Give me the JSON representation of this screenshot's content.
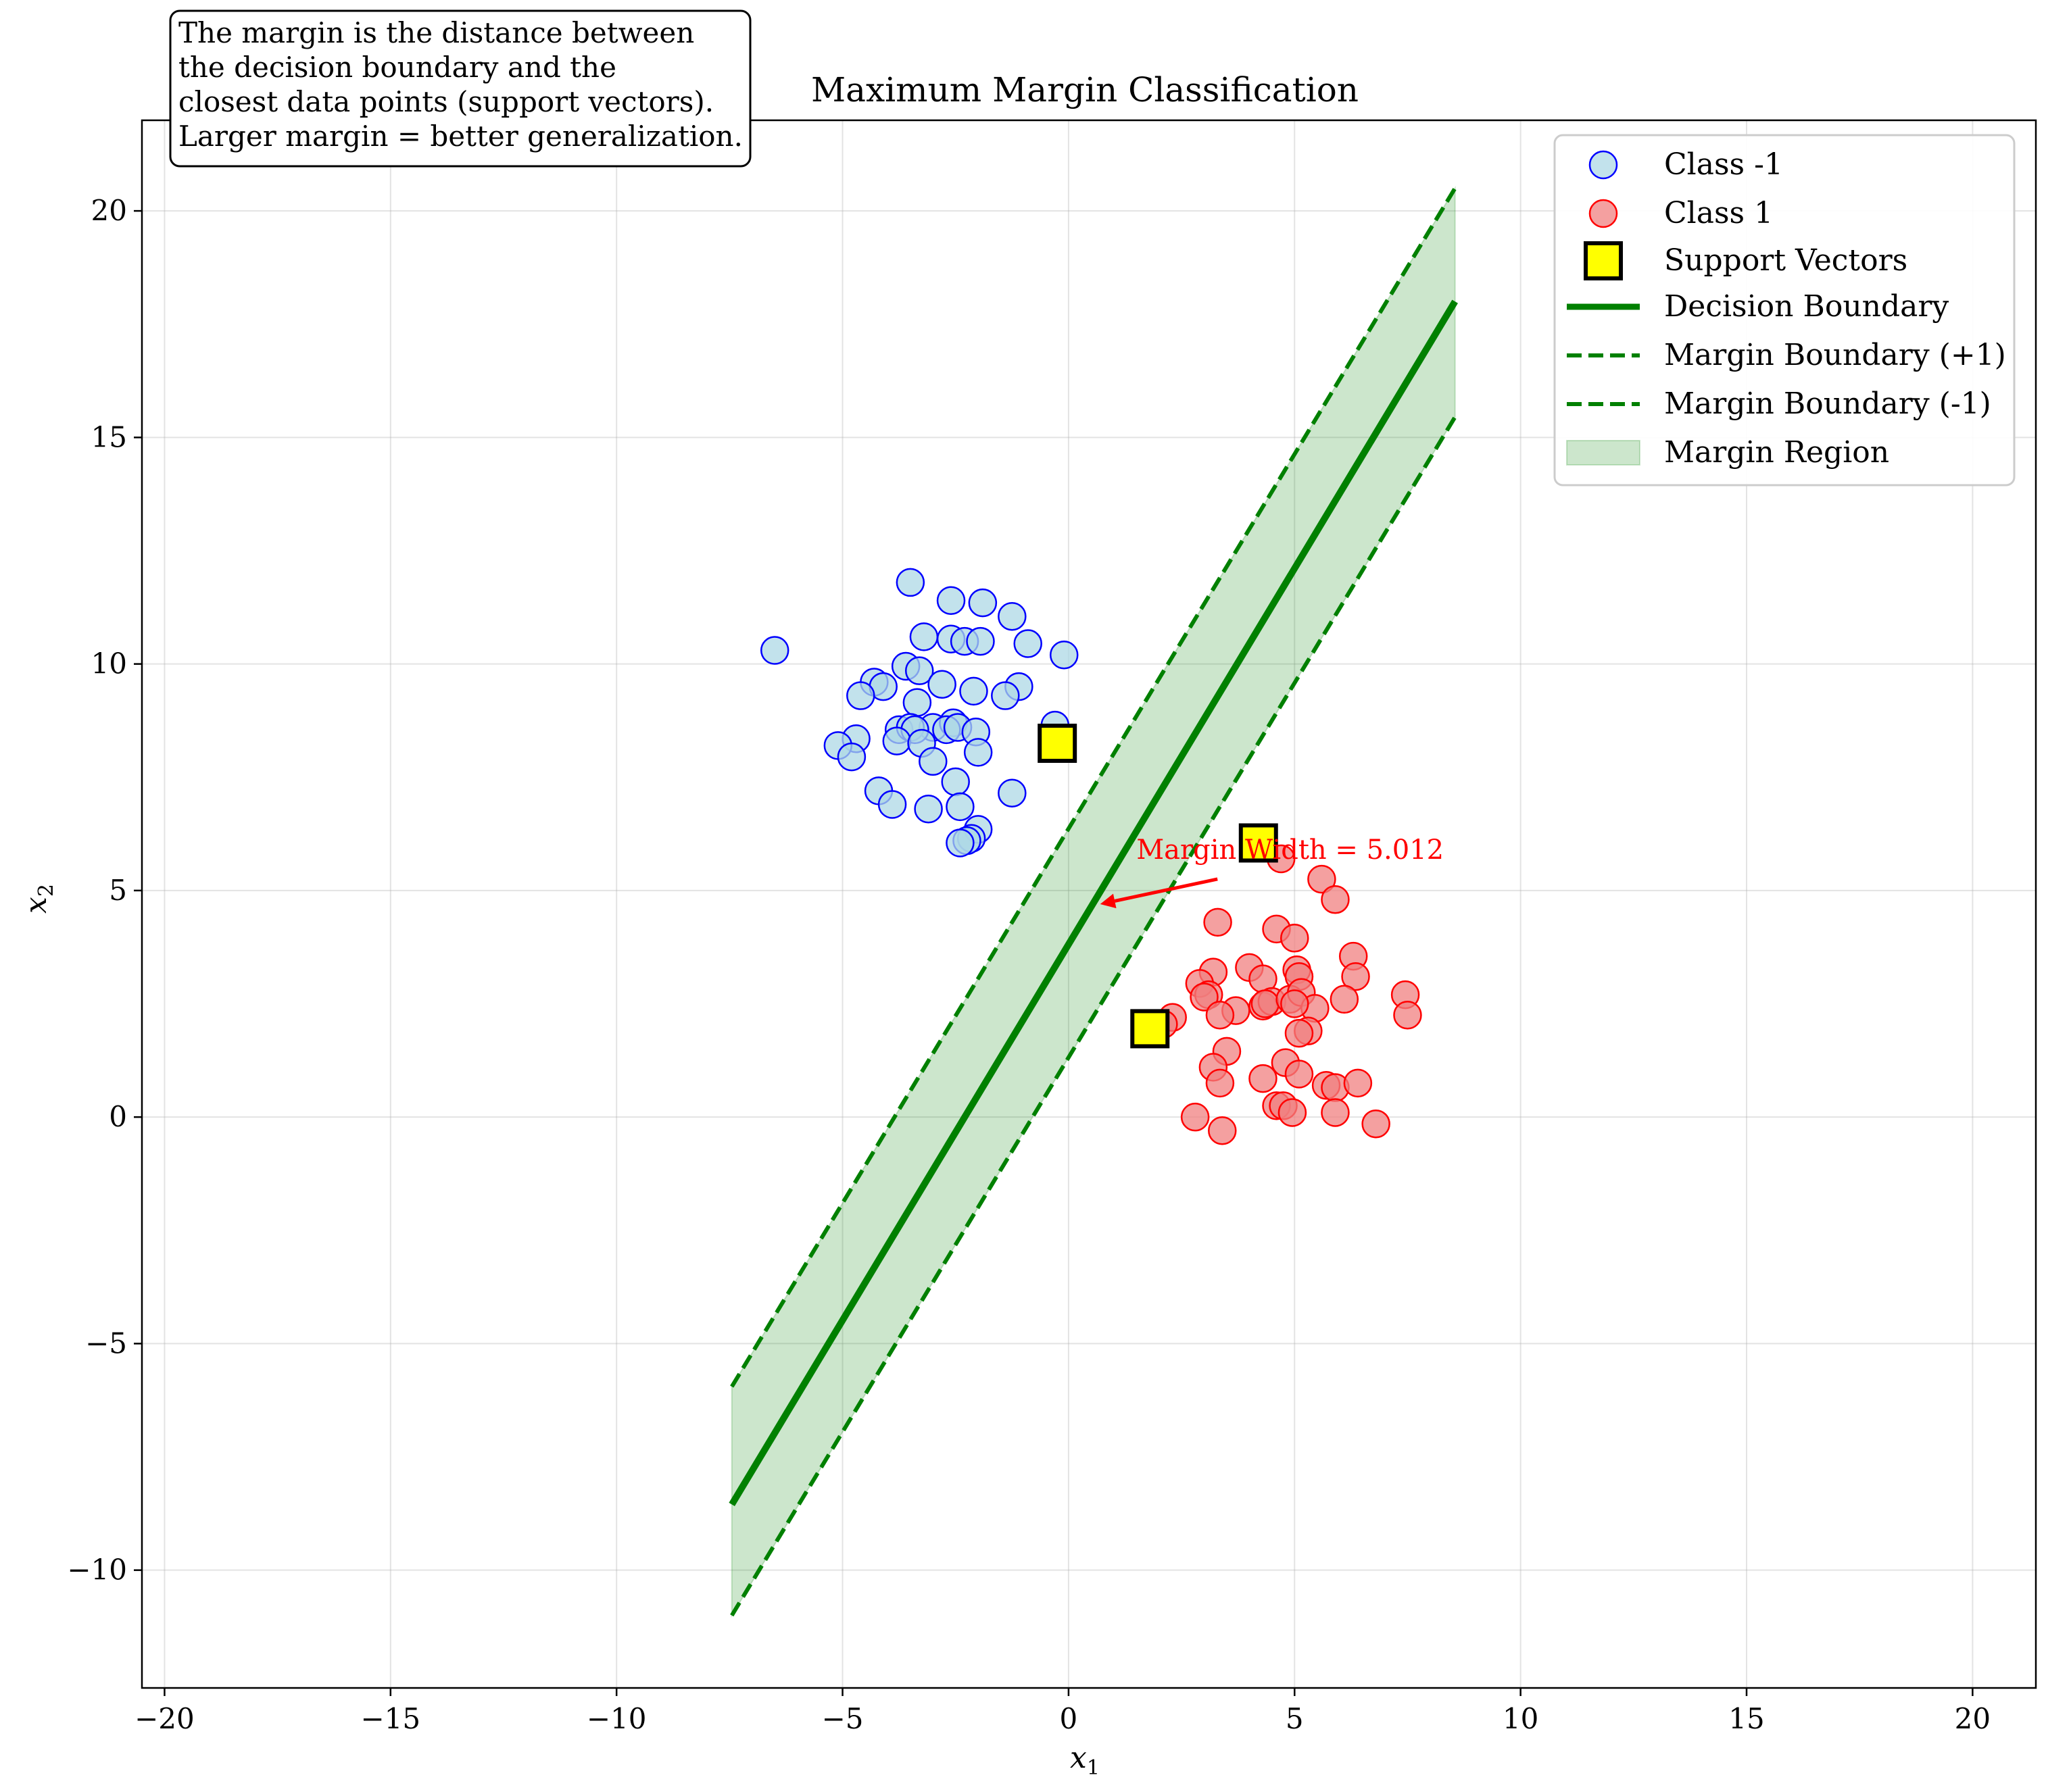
{
  "chart_data": {
    "type": "scatter",
    "title": "Maximum Margin Classification",
    "xlabel": "x",
    "xlabel_sub": "1",
    "ylabel": "x",
    "ylabel_sub": "2",
    "xlim": [
      -20.5,
      21.4
    ],
    "ylim": [
      -12.6,
      22.0
    ],
    "xticks": [
      -20,
      -15,
      -10,
      -5,
      0,
      5,
      10,
      15,
      20
    ],
    "yticks": [
      -10,
      -5,
      0,
      5,
      10,
      15,
      20
    ],
    "xtick_labels": [
      "−20",
      "−15",
      "−10",
      "−5",
      "0",
      "5",
      "10",
      "15",
      "20"
    ],
    "ytick_labels": [
      "−10",
      "−5",
      "0",
      "5",
      "10",
      "15",
      "20"
    ],
    "grid": true,
    "legend_position": "top-right",
    "info_box": [
      "The margin is the distance between",
      "the decision boundary and the",
      "closest data points (support vectors).",
      "Larger margin = better generalization."
    ],
    "annotation": {
      "text": "Margin Width = 5.012",
      "text_x": 1.5,
      "text_y": 5.7,
      "arrow_x": 0.7,
      "arrow_y": 4.7,
      "color": "#ff0000"
    },
    "colors": {
      "class_neg_face": "#add8e6",
      "class_neg_edge": "#0000ff",
      "class_pos_face": "#f08080",
      "class_pos_edge": "#ff0000",
      "support_vector_face": "#ffff00",
      "support_vector_edge": "#000000",
      "boundary": "#008000",
      "margin_fill": "#008000"
    },
    "series": [
      {
        "name": "Class -1",
        "kind": "scatter",
        "points": [
          [
            -6.5,
            10.3
          ],
          [
            -3.5,
            11.8
          ],
          [
            -2.6,
            11.4
          ],
          [
            -1.9,
            11.35
          ],
          [
            -1.25,
            11.05
          ],
          [
            -3.2,
            10.6
          ],
          [
            -2.6,
            10.55
          ],
          [
            -2.3,
            10.5
          ],
          [
            -1.95,
            10.5
          ],
          [
            -0.9,
            10.45
          ],
          [
            -0.1,
            10.2
          ],
          [
            -3.6,
            9.95
          ],
          [
            -3.3,
            9.85
          ],
          [
            -4.3,
            9.6
          ],
          [
            -4.1,
            9.5
          ],
          [
            -2.8,
            9.55
          ],
          [
            -2.1,
            9.4
          ],
          [
            -1.1,
            9.5
          ],
          [
            -1.4,
            9.3
          ],
          [
            -4.6,
            9.3
          ],
          [
            -3.35,
            9.15
          ],
          [
            -3.0,
            8.6
          ],
          [
            -2.55,
            8.7
          ],
          [
            -3.75,
            8.55
          ],
          [
            -3.5,
            8.6
          ],
          [
            -3.4,
            8.55
          ],
          [
            -2.7,
            8.55
          ],
          [
            -2.45,
            8.6
          ],
          [
            -2.05,
            8.5
          ],
          [
            -0.3,
            8.65
          ],
          [
            -4.7,
            8.35
          ],
          [
            -3.8,
            8.3
          ],
          [
            -3.25,
            8.25
          ],
          [
            -5.1,
            8.2
          ],
          [
            -4.8,
            7.95
          ],
          [
            -2.0,
            8.05
          ],
          [
            -3.0,
            7.85
          ],
          [
            -2.5,
            7.4
          ],
          [
            -1.25,
            7.15
          ],
          [
            -4.2,
            7.2
          ],
          [
            -3.9,
            6.9
          ],
          [
            -3.1,
            6.8
          ],
          [
            -2.4,
            6.85
          ],
          [
            -2.0,
            6.35
          ],
          [
            -2.15,
            6.15
          ],
          [
            -2.25,
            6.1
          ],
          [
            -2.4,
            6.05
          ]
        ]
      },
      {
        "name": "Class 1",
        "kind": "scatter",
        "points": [
          [
            4.7,
            5.7
          ],
          [
            5.6,
            5.25
          ],
          [
            5.9,
            4.8
          ],
          [
            3.3,
            4.3
          ],
          [
            4.6,
            4.15
          ],
          [
            5.0,
            3.95
          ],
          [
            6.3,
            3.55
          ],
          [
            3.2,
            3.2
          ],
          [
            4.0,
            3.3
          ],
          [
            4.3,
            3.05
          ],
          [
            5.05,
            3.25
          ],
          [
            5.1,
            3.1
          ],
          [
            6.35,
            3.1
          ],
          [
            2.9,
            2.95
          ],
          [
            3.1,
            2.7
          ],
          [
            3.0,
            2.65
          ],
          [
            4.3,
            2.45
          ],
          [
            4.5,
            2.55
          ],
          [
            4.35,
            2.5
          ],
          [
            4.9,
            2.6
          ],
          [
            5.15,
            2.75
          ],
          [
            5.45,
            2.4
          ],
          [
            5.0,
            2.5
          ],
          [
            6.1,
            2.6
          ],
          [
            7.45,
            2.7
          ],
          [
            3.7,
            2.35
          ],
          [
            3.35,
            2.25
          ],
          [
            2.3,
            2.2
          ],
          [
            7.5,
            2.25
          ],
          [
            2.1,
            2.05
          ],
          [
            5.3,
            1.9
          ],
          [
            5.1,
            1.85
          ],
          [
            3.5,
            1.45
          ],
          [
            4.8,
            1.2
          ],
          [
            3.2,
            1.1
          ],
          [
            5.1,
            0.95
          ],
          [
            4.3,
            0.85
          ],
          [
            3.35,
            0.75
          ],
          [
            5.7,
            0.7
          ],
          [
            5.9,
            0.65
          ],
          [
            6.4,
            0.75
          ],
          [
            4.6,
            0.25
          ],
          [
            4.75,
            0.25
          ],
          [
            4.95,
            0.1
          ],
          [
            5.9,
            0.1
          ],
          [
            2.8,
            0.0
          ],
          [
            6.8,
            -0.15
          ],
          [
            3.4,
            -0.3
          ]
        ]
      },
      {
        "name": "Support Vectors",
        "kind": "marker",
        "points": [
          [
            -0.25,
            8.25
          ],
          [
            4.2,
            6.05
          ],
          [
            1.8,
            1.95
          ]
        ]
      },
      {
        "name": "Decision Boundary",
        "kind": "line",
        "points": [
          [
            -7.45,
            -8.55
          ],
          [
            8.55,
            18.0
          ]
        ]
      },
      {
        "name": "Margin Boundary (+1)",
        "kind": "dashed",
        "points": [
          [
            -7.45,
            -5.95
          ],
          [
            8.55,
            20.5
          ]
        ]
      },
      {
        "name": "Margin Boundary (-1)",
        "kind": "dashed",
        "points": [
          [
            -7.45,
            -11.0
          ],
          [
            8.55,
            15.45
          ]
        ]
      },
      {
        "name": "Margin Region",
        "kind": "fill"
      }
    ]
  }
}
